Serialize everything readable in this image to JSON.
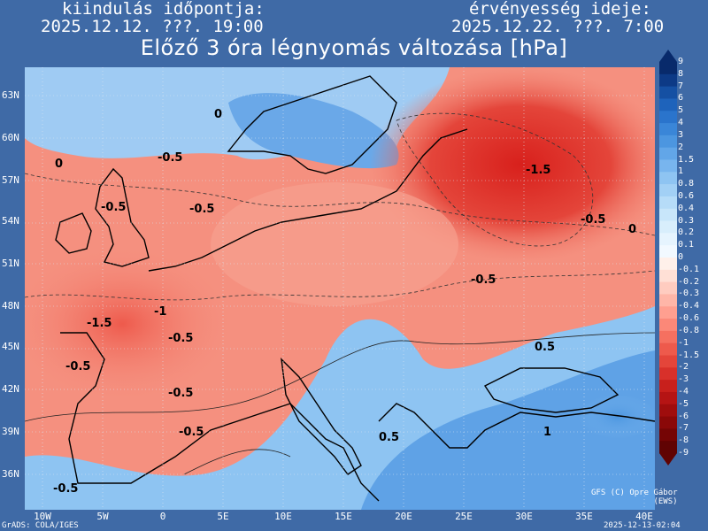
{
  "header": {
    "init_label": "kiindulás időpontja:",
    "init_value": "2025.12.12. ???. 19:00",
    "valid_label": "érvényesség ideje:",
    "valid_value": "2025.12.22. ???. 7:00",
    "title": "Előző 3 óra légnyomás változása [hPa]"
  },
  "axes": {
    "lat_labels": [
      "63N",
      "60N",
      "57N",
      "54N",
      "51N",
      "48N",
      "45N",
      "42N",
      "39N",
      "36N"
    ],
    "lon_labels": [
      "10W",
      "5W",
      "0",
      "5E",
      "10E",
      "15E",
      "20E",
      "25E",
      "30E",
      "35E",
      "40E"
    ]
  },
  "colorbar": {
    "labels": [
      "9",
      "8",
      "7",
      "6",
      "5",
      "4",
      "3",
      "2",
      "1.5",
      "1",
      "0.8",
      "0.6",
      "0.4",
      "0.3",
      "0.2",
      "0.1",
      "0",
      "-0.1",
      "-0.2",
      "-0.3",
      "-0.4",
      "-0.6",
      "-0.8",
      "-1",
      "-1.5",
      "-2",
      "-3",
      "-4",
      "-5",
      "-6",
      "-7",
      "-8",
      "-9"
    ],
    "colors": [
      "#082a6b",
      "#0d3a86",
      "#1550a3",
      "#1e63bb",
      "#2a74cc",
      "#3a86d8",
      "#4c96e0",
      "#62a6e8",
      "#78b5ee",
      "#8ec4f2",
      "#a2d0f5",
      "#b6dcf8",
      "#c8e6fa",
      "#d8eefc",
      "#e6f4fe",
      "#f2f9ff",
      "#fff0ea",
      "#ffe0d6",
      "#ffccc0",
      "#ffb6a8",
      "#ff9f90",
      "#fb8878",
      "#f57060",
      "#ee5a4c",
      "#e4453a",
      "#d8302a",
      "#c8201c",
      "#b51414",
      "#9f0d0d",
      "#8a0808",
      "#750505",
      "#600303"
    ]
  },
  "map_labels": [
    {
      "text": "0"
    },
    {
      "text": "-0.5"
    },
    {
      "text": "-0.5"
    },
    {
      "text": "-0.5"
    },
    {
      "text": "-1.5"
    },
    {
      "text": "-0.5"
    },
    {
      "text": "-0.5"
    },
    {
      "text": "-1"
    },
    {
      "text": "-1.5"
    },
    {
      "text": "-0.5"
    },
    {
      "text": "-0.5"
    },
    {
      "text": "-0.5"
    },
    {
      "text": "-0.5"
    },
    {
      "text": "0.5"
    },
    {
      "text": "0.5"
    },
    {
      "text": "1"
    },
    {
      "text": "-0.5"
    },
    {
      "text": "0"
    },
    {
      "text": "0"
    }
  ],
  "footer": {
    "credit": "GFS (C) Opre Gábor\n(EWS)",
    "grads": "GrADS: COLA/IGES",
    "timestamp": "2025-12-13-02:04"
  },
  "colors": {
    "background": "#3f6aa6",
    "text": "#ffffff",
    "land_border": "#000000"
  }
}
